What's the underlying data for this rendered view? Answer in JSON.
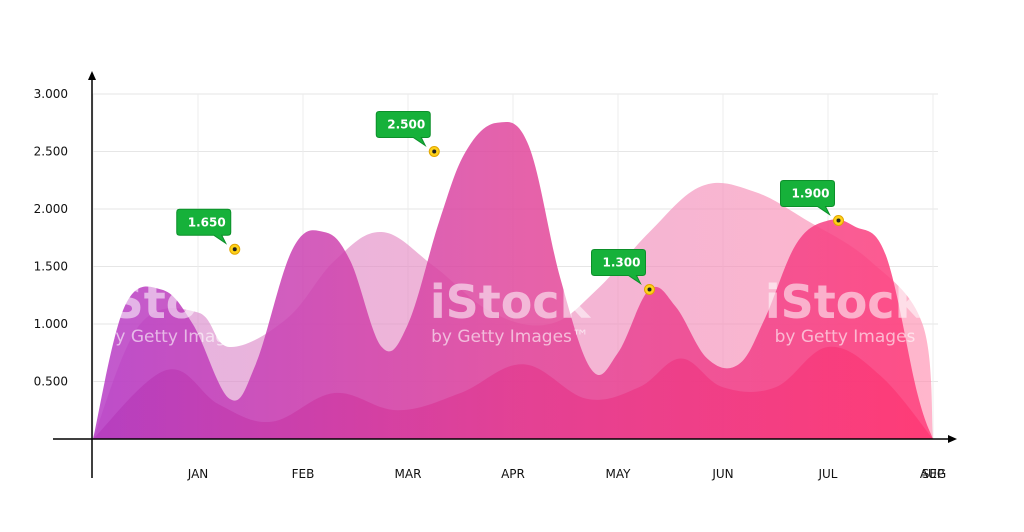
{
  "chart_data": {
    "type": "area",
    "title": "",
    "xlabel": "",
    "ylabel": "",
    "ylim": [
      0,
      3000
    ],
    "yticks": [
      "0.500",
      "1.000",
      "1.500",
      "2.000",
      "2.500",
      "3.000"
    ],
    "yticks_values": [
      500,
      1000,
      1500,
      2000,
      2500,
      3000
    ],
    "categories": [
      "JAN",
      "FEB",
      "MAR",
      "APR",
      "MAY",
      "JUN",
      "JUL",
      "AUG",
      "SEP"
    ],
    "grid": true,
    "series": [
      {
        "color": "#f8a6c4",
        "x": [
          0.0,
          0.45,
          1.0,
          1.3,
          1.85,
          2.3,
          2.75,
          3.25,
          3.8,
          4.35,
          4.8,
          5.3,
          5.8,
          6.3,
          6.8,
          7.4,
          7.9,
          8.0
        ],
        "values": [
          0,
          1000,
          1100,
          800,
          1050,
          1550,
          1800,
          1500,
          1100,
          1000,
          1300,
          1800,
          2200,
          2150,
          1900,
          1550,
          1000,
          0
        ]
      },
      {
        "color": "#e0479c",
        "x": [
          0.0,
          0.3,
          0.65,
          0.95,
          1.3,
          1.55,
          1.9,
          2.2,
          2.45,
          2.75,
          3.0,
          3.3,
          3.55,
          3.85,
          4.15,
          4.45,
          4.75,
          5.0,
          5.3,
          5.55,
          5.85,
          6.15,
          6.4,
          6.7,
          7.0,
          7.25,
          7.55,
          7.85,
          8.0
        ],
        "values": [
          0,
          1150,
          1300,
          1000,
          350,
          650,
          1650,
          1800,
          1550,
          800,
          1000,
          1900,
          2500,
          2750,
          2550,
          1400,
          600,
          750,
          1300,
          1150,
          700,
          650,
          1050,
          1700,
          1900,
          1850,
          1600,
          400,
          0
        ]
      },
      {
        "color": "#c2307f",
        "x": [
          0.0,
          0.7,
          1.2,
          1.7,
          2.3,
          2.9,
          3.5,
          4.1,
          4.7,
          5.2,
          5.6,
          6.0,
          6.5,
          7.0,
          7.5,
          8.0
        ],
        "values": [
          0,
          600,
          300,
          150,
          400,
          250,
          400,
          650,
          350,
          450,
          700,
          450,
          450,
          800,
          550,
          0
        ]
      }
    ],
    "callouts": [
      {
        "x": 1.35,
        "value": 1650,
        "label": "1.650"
      },
      {
        "x": 3.25,
        "value": 2500,
        "label": "2.500"
      },
      {
        "x": 5.3,
        "value": 1300,
        "label": "1.300"
      },
      {
        "x": 7.1,
        "value": 1900,
        "label": "1.900"
      }
    ]
  },
  "watermark": {
    "brand": "iStock",
    "sub": "by Getty Images",
    "sub_tm": "by Getty Images™"
  }
}
